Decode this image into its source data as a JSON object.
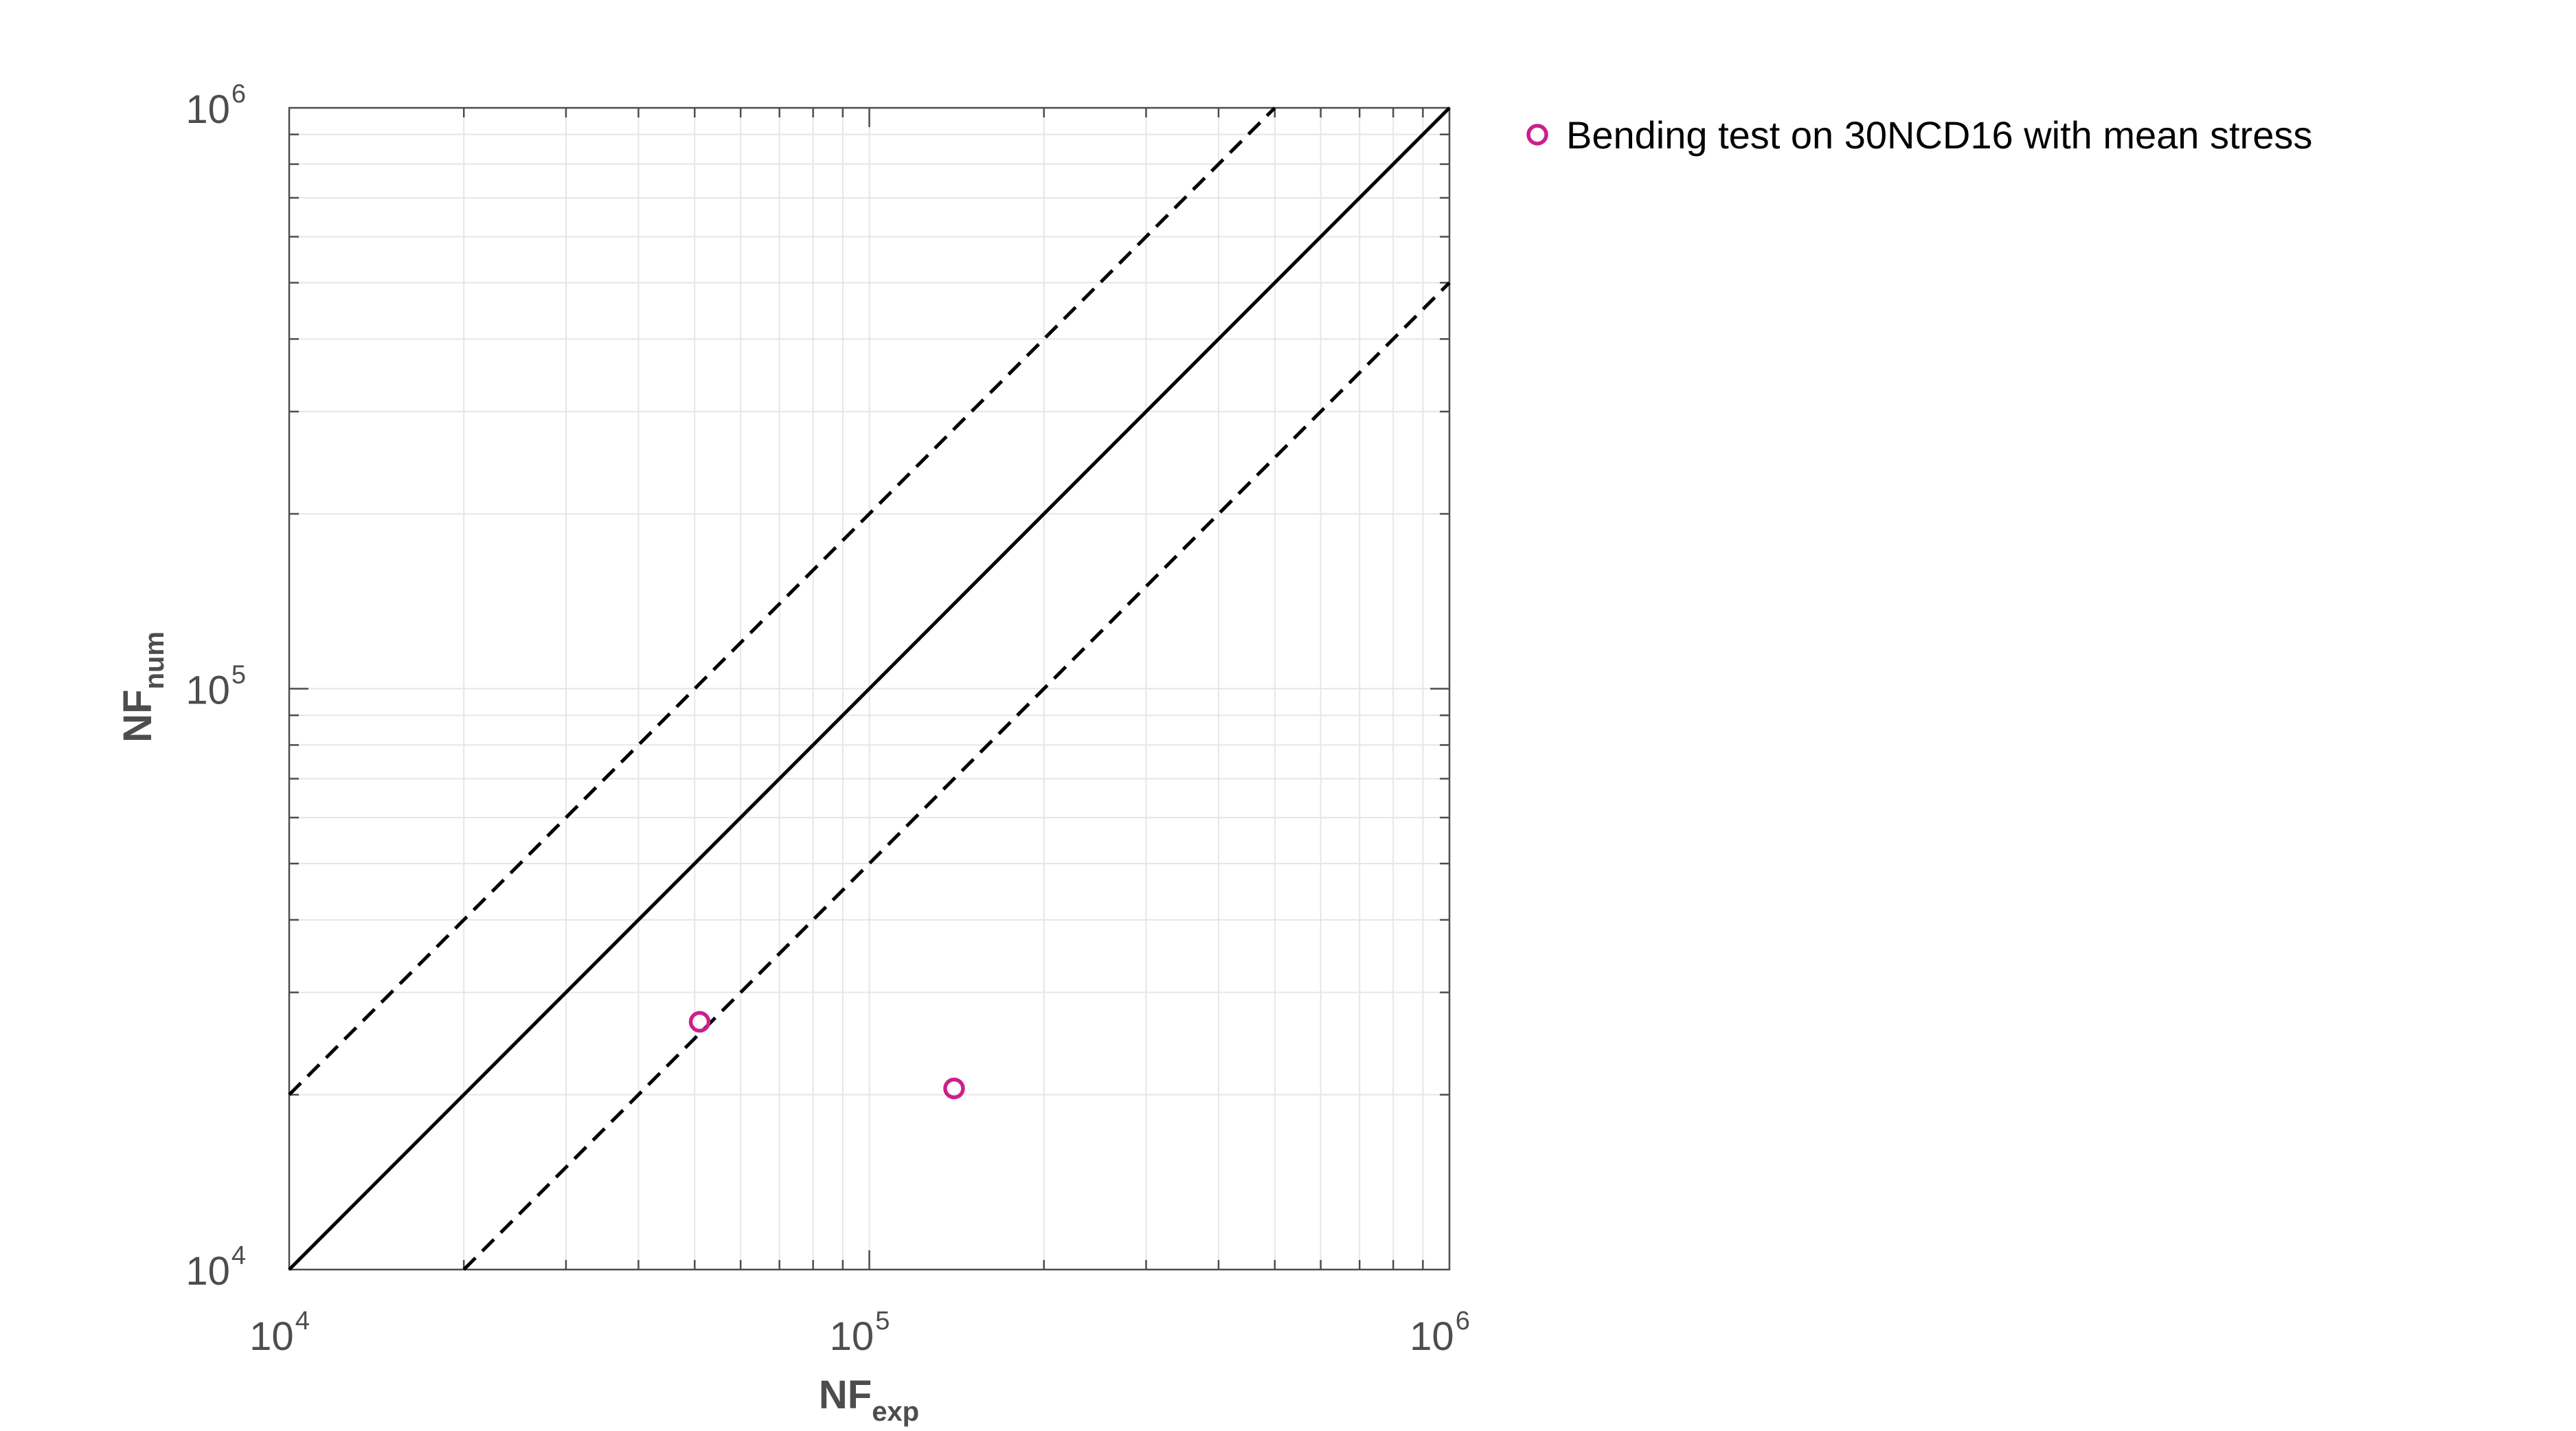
{
  "chart_data": {
    "type": "scatter",
    "x_scale": "log",
    "y_scale": "log",
    "xlim": [
      10000,
      1000000
    ],
    "ylim": [
      10000,
      1000000
    ],
    "grid": true,
    "legend_position": "top-right, outside plot",
    "xlabel": {
      "main": "NF",
      "sub": "exp"
    },
    "ylabel": {
      "main": "NF",
      "sub": "num"
    },
    "x_ticks": [
      {
        "value": 10000,
        "base": "10",
        "exp": "4"
      },
      {
        "value": 100000,
        "base": "10",
        "exp": "5"
      },
      {
        "value": 1000000,
        "base": "10",
        "exp": "6"
      }
    ],
    "y_ticks": [
      {
        "value": 10000,
        "base": "10",
        "exp": "4"
      },
      {
        "value": 100000,
        "base": "10",
        "exp": "5"
      },
      {
        "value": 1000000,
        "base": "10",
        "exp": "6"
      }
    ],
    "series": [
      {
        "name": "Bending test on 30NCD16 with mean stress",
        "marker": "circle-open",
        "color": "#cc1f8a",
        "points": [
          {
            "x": 51000,
            "y": 26700
          },
          {
            "x": 140000,
            "y": 20500
          }
        ]
      }
    ],
    "reference_lines": [
      {
        "style": "solid",
        "ratio": 1,
        "from": [
          10000,
          10000
        ],
        "to": [
          1000000,
          1000000
        ]
      },
      {
        "style": "dashed",
        "ratio": 2,
        "from": [
          10000,
          20000
        ],
        "to": [
          500000,
          1000000
        ]
      },
      {
        "style": "dashed",
        "ratio": 0.5,
        "from": [
          20000,
          10000
        ],
        "to": [
          1000000,
          500000
        ]
      }
    ]
  }
}
